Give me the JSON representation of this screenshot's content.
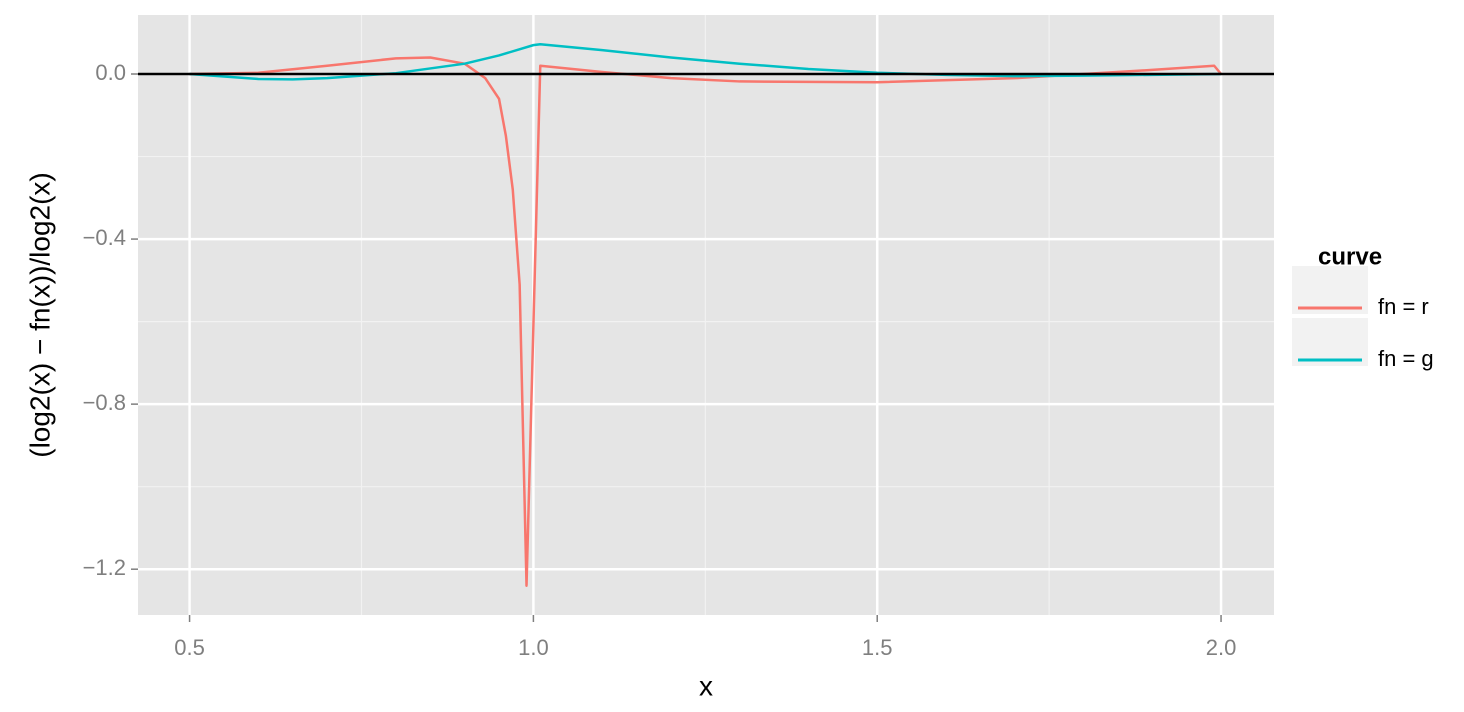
{
  "chart_data": {
    "type": "line",
    "x_label": "x",
    "y_label": "(log2(x) − fn(x))/log2(x)",
    "legend_title": "curve",
    "legend_position": "right",
    "grid": true,
    "background": "#e5e5e5",
    "hline": 0,
    "xlim": [
      0.425,
      2.077
    ],
    "ylim": [
      -1.311,
      0.143
    ],
    "xticks": [
      0.5,
      {
        "value": 1.0,
        "label": "1.0"
      },
      1.5,
      {
        "value": 2.0,
        "label": "2.0"
      }
    ],
    "yticks": [
      {
        "value": 0,
        "label": "0.0"
      },
      {
        "value": -0.4,
        "label": "−0.4"
      },
      {
        "value": -0.8,
        "label": "−0.8"
      },
      {
        "value": -1.2,
        "label": "−1.2"
      }
    ],
    "xminor": [
      0.75,
      1.25,
      1.75
    ],
    "yminor": [
      0.2,
      -0.2,
      -0.6,
      -1.0
    ],
    "series": [
      {
        "name": "fn = r",
        "color": "#f8766d",
        "x": [
          0.5,
          0.6,
          0.7,
          0.8,
          0.85,
          0.9,
          0.93,
          0.95,
          0.96,
          0.97,
          0.98,
          0.99,
          1.01,
          1.1,
          1.2,
          1.3,
          1.5,
          1.7,
          1.8,
          1.9,
          1.99,
          2.0
        ],
        "values": [
          0,
          0.003,
          0.02,
          0.038,
          0.04,
          0.025,
          -0.01,
          -0.06,
          -0.15,
          -0.28,
          -0.51,
          -1.24,
          0.02,
          0.005,
          -0.01,
          -0.018,
          -0.02,
          -0.01,
          0,
          0.01,
          0.02,
          0
        ]
      },
      {
        "name": "fn = g",
        "color": "#00bfc4",
        "x": [
          0.5,
          0.6,
          0.65,
          0.7,
          0.8,
          0.9,
          0.95,
          1.0,
          1.01,
          1.1,
          1.2,
          1.3,
          1.4,
          1.5,
          1.6,
          1.7,
          1.8,
          1.9,
          2.0
        ],
        "values": [
          0,
          -0.012,
          -0.013,
          -0.01,
          0.002,
          0.025,
          0.045,
          0.07,
          0.072,
          0.058,
          0.04,
          0.025,
          0.012,
          0.003,
          -0.002,
          -0.005,
          -0.004,
          -0.002,
          0
        ]
      }
    ]
  }
}
